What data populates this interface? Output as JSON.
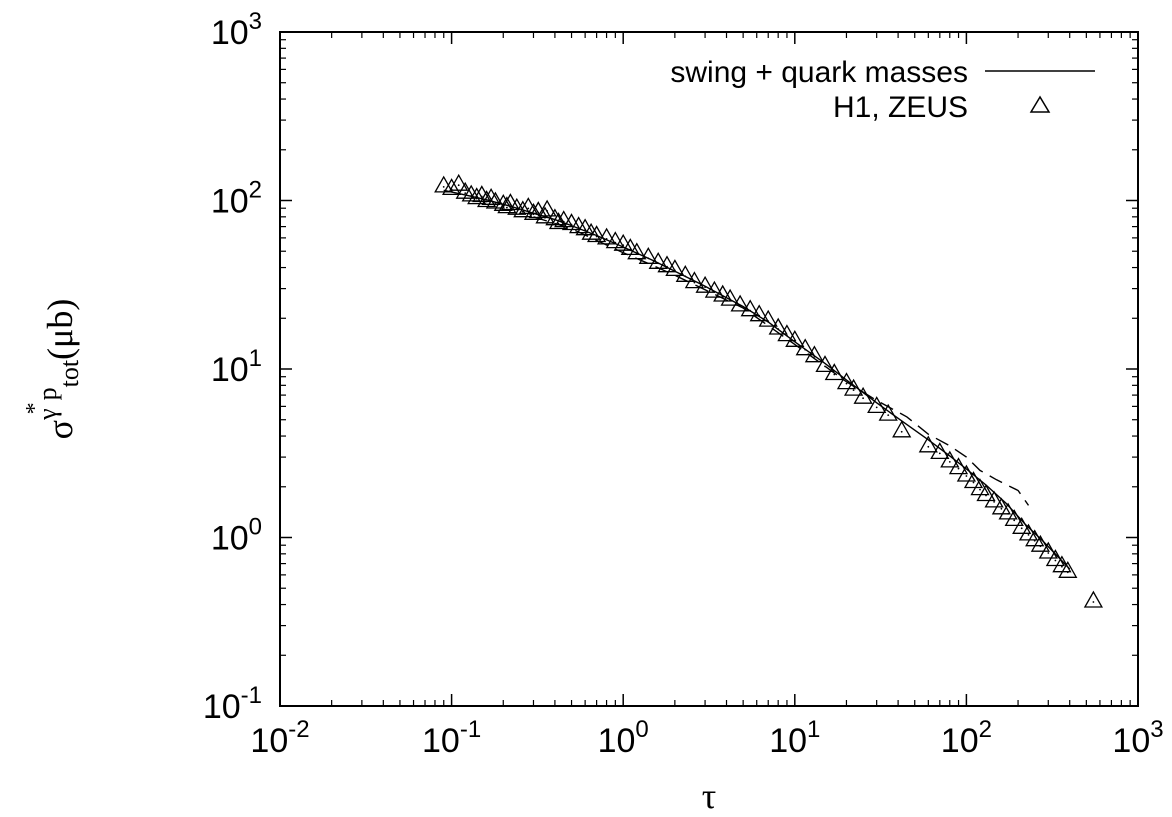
{
  "chart_data": {
    "type": "scatter",
    "title": "",
    "xlabel": "τ",
    "ylabel": {
      "base": "σ",
      "superscript": "γ",
      "superscript_star": "*",
      "after": "p",
      "subscript": "tot",
      "unit": "(μb)"
    },
    "x_scale": "log",
    "y_scale": "log",
    "xlim": [
      0.01,
      1000
    ],
    "ylim": [
      0.1,
      1000
    ],
    "x_ticks": [
      {
        "value": 0.01,
        "base": "10",
        "exp": "-2"
      },
      {
        "value": 0.1,
        "base": "10",
        "exp": "-1"
      },
      {
        "value": 1,
        "base": "10",
        "exp": "0"
      },
      {
        "value": 10,
        "base": "10",
        "exp": "1"
      },
      {
        "value": 100,
        "base": "10",
        "exp": "2"
      },
      {
        "value": 1000,
        "base": "10",
        "exp": "3"
      }
    ],
    "y_ticks": [
      {
        "value": 0.1,
        "base": "10",
        "exp": "-1"
      },
      {
        "value": 1,
        "base": "10",
        "exp": "0"
      },
      {
        "value": 10,
        "base": "10",
        "exp": "1"
      },
      {
        "value": 100,
        "base": "10",
        "exp": "2"
      },
      {
        "value": 1000,
        "base": "10",
        "exp": "3"
      }
    ],
    "grid": false,
    "legend_position": "top-right",
    "series": [
      {
        "name": "swing + quark masses",
        "style": "line",
        "color": "#000000",
        "points": [
          [
            0.09,
            115
          ],
          [
            0.12,
            108
          ],
          [
            0.16,
            101
          ],
          [
            0.2,
            95
          ],
          [
            0.25,
            89
          ],
          [
            0.3,
            84
          ],
          [
            0.4,
            77
          ],
          [
            0.5,
            71
          ],
          [
            0.7,
            62
          ],
          [
            1.0,
            53
          ],
          [
            1.5,
            44
          ],
          [
            2.0,
            38
          ],
          [
            3.0,
            31
          ],
          [
            4.0,
            26.5
          ],
          [
            5.0,
            23.5
          ],
          [
            7.0,
            19
          ],
          [
            10,
            14.5
          ],
          [
            15,
            10.8
          ],
          [
            20,
            8.6
          ],
          [
            30,
            6.3
          ],
          [
            40,
            5.1
          ],
          [
            60,
            3.8
          ],
          [
            80,
            3.05
          ],
          [
            100,
            2.55
          ],
          [
            130,
            2.05
          ],
          [
            170,
            1.6
          ],
          [
            220,
            1.2
          ],
          [
            280,
            0.95
          ],
          [
            350,
            0.75
          ],
          [
            400,
            0.65
          ]
        ]
      },
      {
        "name": "",
        "style": "dashed",
        "color": "#000000",
        "points": [
          [
            0.3,
            80
          ],
          [
            0.5,
            68
          ],
          [
            0.7,
            58
          ],
          [
            1.0,
            49
          ],
          [
            1.5,
            41
          ],
          [
            2.0,
            36
          ],
          [
            3.0,
            29.5
          ],
          [
            5.0,
            23
          ],
          [
            10,
            14
          ],
          [
            20,
            8.4
          ],
          [
            30,
            6.5
          ],
          [
            45,
            5.2
          ],
          [
            60,
            4.1
          ],
          [
            80,
            3.5
          ],
          [
            100,
            3.0
          ],
          [
            120,
            2.5
          ],
          [
            150,
            2.2
          ],
          [
            200,
            1.9
          ],
          [
            230,
            1.55
          ]
        ]
      },
      {
        "name": "H1, ZEUS",
        "style": "triangle",
        "color": "#000000",
        "points": [
          [
            0.09,
            122
          ],
          [
            0.1,
            118
          ],
          [
            0.11,
            125
          ],
          [
            0.12,
            112
          ],
          [
            0.13,
            108
          ],
          [
            0.14,
            104
          ],
          [
            0.15,
            107
          ],
          [
            0.16,
            100
          ],
          [
            0.17,
            103
          ],
          [
            0.18,
            98
          ],
          [
            0.2,
            95
          ],
          [
            0.21,
            92
          ],
          [
            0.22,
            96
          ],
          [
            0.24,
            90
          ],
          [
            0.26,
            87
          ],
          [
            0.28,
            91
          ],
          [
            0.3,
            84
          ],
          [
            0.32,
            86
          ],
          [
            0.35,
            80
          ],
          [
            0.36,
            88
          ],
          [
            0.4,
            78
          ],
          [
            0.42,
            74
          ],
          [
            0.45,
            76
          ],
          [
            0.5,
            73
          ],
          [
            0.55,
            70
          ],
          [
            0.6,
            68
          ],
          [
            0.65,
            64
          ],
          [
            0.7,
            62
          ],
          [
            0.8,
            60
          ],
          [
            0.9,
            57
          ],
          [
            1.0,
            55
          ],
          [
            1.1,
            52
          ],
          [
            1.2,
            49
          ],
          [
            1.4,
            46
          ],
          [
            1.6,
            43
          ],
          [
            1.8,
            41
          ],
          [
            2.0,
            39
          ],
          [
            2.3,
            36
          ],
          [
            2.6,
            33
          ],
          [
            3.0,
            31
          ],
          [
            3.4,
            29
          ],
          [
            3.8,
            27.5
          ],
          [
            4.2,
            26
          ],
          [
            4.8,
            24
          ],
          [
            5.5,
            22.5
          ],
          [
            6.2,
            21
          ],
          [
            7.0,
            19.5
          ],
          [
            8.0,
            17.5
          ],
          [
            9.0,
            16
          ],
          [
            10,
            14.8
          ],
          [
            11.5,
            13.2
          ],
          [
            13,
            12
          ],
          [
            15,
            10.5
          ],
          [
            17,
            9.4
          ],
          [
            20,
            8.3
          ],
          [
            22,
            7.6
          ],
          [
            25,
            6.8
          ],
          [
            30,
            6.0
          ],
          [
            35,
            5.4
          ],
          [
            42,
            4.3
          ],
          [
            60,
            3.5
          ],
          [
            70,
            3.2
          ],
          [
            80,
            2.85
          ],
          [
            90,
            2.6
          ],
          [
            100,
            2.35
          ],
          [
            110,
            2.15
          ],
          [
            120,
            1.95
          ],
          [
            130,
            1.8
          ],
          [
            145,
            1.65
          ],
          [
            160,
            1.5
          ],
          [
            175,
            1.4
          ],
          [
            190,
            1.28
          ],
          [
            210,
            1.15
          ],
          [
            230,
            1.05
          ],
          [
            250,
            0.97
          ],
          [
            270,
            0.9
          ],
          [
            300,
            0.82
          ],
          [
            330,
            0.74
          ],
          [
            360,
            0.68
          ],
          [
            390,
            0.63
          ],
          [
            550,
            0.42
          ]
        ]
      }
    ]
  }
}
